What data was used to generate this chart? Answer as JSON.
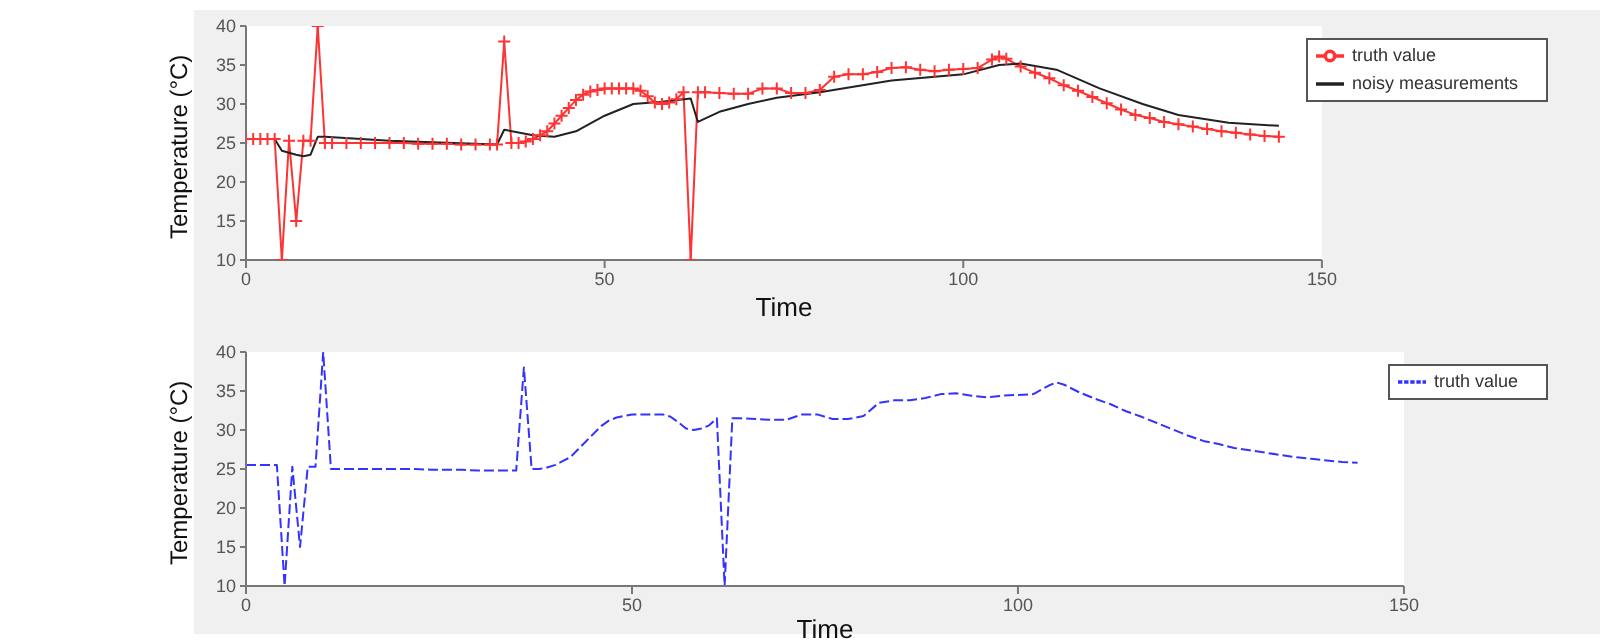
{
  "chart_data": [
    {
      "type": "line",
      "xlabel": "Time",
      "ylabel": "Temperature (°C)",
      "xlim": [
        0,
        150
      ],
      "xticks": [
        0,
        50,
        100,
        150
      ],
      "ylim": [
        10,
        40
      ],
      "yticks": [
        10,
        15,
        20,
        25,
        30,
        35,
        40
      ],
      "legend": "top right",
      "x": [
        0,
        1,
        2,
        3,
        4,
        5,
        6,
        7,
        8,
        9,
        10,
        11,
        12,
        14,
        16,
        18,
        20,
        22,
        24,
        26,
        28,
        30,
        32,
        34,
        35,
        36,
        37,
        38,
        39,
        40,
        41,
        42,
        43,
        44,
        45,
        46,
        47,
        48,
        49,
        50,
        51,
        52,
        53,
        54,
        55,
        56,
        57,
        58,
        59,
        60,
        61,
        62,
        63,
        64,
        66,
        68,
        70,
        72,
        74,
        76,
        78,
        80,
        82,
        84,
        86,
        88,
        90,
        92,
        94,
        96,
        98,
        100,
        102,
        104,
        105,
        106,
        108,
        110,
        112,
        114,
        116,
        118,
        120,
        122,
        124,
        126,
        128,
        130,
        132,
        134,
        136,
        138,
        140,
        142,
        144
      ],
      "series": [
        {
          "name": "truth value",
          "color": "#ff3333",
          "marker": "cross",
          "values": [
            25.5,
            25.5,
            25.5,
            25.5,
            25.5,
            10,
            25.3,
            15,
            25.3,
            25.3,
            40,
            25,
            25,
            25,
            25,
            25,
            25,
            25,
            24.9,
            24.9,
            24.9,
            24.8,
            24.8,
            24.8,
            24.8,
            38,
            25,
            25,
            25.2,
            25.5,
            26,
            26.5,
            27.5,
            28.5,
            29.5,
            30.5,
            31.2,
            31.6,
            31.8,
            32,
            32,
            32,
            32,
            32,
            31.7,
            31,
            30.2,
            30,
            30.2,
            30.6,
            31.5,
            10,
            31.5,
            31.5,
            31.4,
            31.3,
            31.3,
            32,
            32,
            31.4,
            31.4,
            31.8,
            33.5,
            33.8,
            33.8,
            34.1,
            34.6,
            34.7,
            34.4,
            34.2,
            34.4,
            34.5,
            34.6,
            35.7,
            36.1,
            35.8,
            34.8,
            34,
            33.3,
            32.4,
            31.7,
            30.9,
            30.1,
            29.3,
            28.6,
            28.2,
            27.7,
            27.4,
            27.1,
            26.8,
            26.5,
            26.3,
            26.1,
            25.9,
            25.8
          ]
        },
        {
          "name": "noisy measurements",
          "color": "#222222",
          "x": [
            0,
            4,
            5,
            7,
            8,
            9,
            10,
            11,
            20,
            35,
            36,
            40,
            43,
            46,
            50,
            54,
            58,
            62,
            63,
            66,
            70,
            74,
            80,
            90,
            100,
            105,
            108,
            113,
            119,
            125,
            130,
            137,
            144
          ],
          "values": [
            25.5,
            25.5,
            24,
            23.5,
            23.3,
            23.5,
            25.8,
            25.8,
            25.3,
            24.8,
            26.7,
            26,
            25.8,
            26.5,
            28.5,
            30,
            30.3,
            30.7,
            27.7,
            29,
            30,
            30.8,
            31.5,
            33,
            33.8,
            35,
            35.2,
            34.4,
            32,
            30,
            28.6,
            27.6,
            27.2
          ]
        }
      ]
    },
    {
      "type": "line",
      "xlabel": "Time",
      "ylabel": "Temperature (°C)",
      "xlim": [
        0,
        150
      ],
      "xticks": [
        0,
        50,
        100,
        150
      ],
      "ylim": [
        10,
        40
      ],
      "yticks": [
        10,
        15,
        20,
        25,
        30,
        35,
        40
      ],
      "legend": "top right",
      "line_style": "dashed",
      "x": [
        0,
        1,
        2,
        3,
        4,
        5,
        6,
        7,
        8,
        9,
        10,
        11,
        12,
        14,
        16,
        18,
        20,
        22,
        24,
        26,
        28,
        30,
        32,
        34,
        35,
        36,
        37,
        38,
        39,
        40,
        41,
        42,
        43,
        44,
        45,
        46,
        47,
        48,
        49,
        50,
        51,
        52,
        53,
        54,
        55,
        56,
        57,
        58,
        59,
        60,
        61,
        62,
        63,
        64,
        66,
        68,
        70,
        72,
        74,
        76,
        78,
        80,
        82,
        84,
        86,
        88,
        90,
        92,
        94,
        96,
        98,
        100,
        102,
        104,
        105,
        106,
        108,
        110,
        112,
        114,
        116,
        118,
        120,
        122,
        124,
        126,
        128,
        130,
        132,
        134,
        136,
        138,
        140,
        142,
        144
      ],
      "series": [
        {
          "name": "truth value",
          "color": "#3333ff",
          "values": [
            25.5,
            25.5,
            25.5,
            25.5,
            25.5,
            10,
            25.3,
            15,
            25.3,
            25.3,
            40,
            25,
            25,
            25,
            25,
            25,
            25,
            25,
            24.9,
            24.9,
            24.9,
            24.8,
            24.8,
            24.8,
            24.8,
            38,
            25,
            25,
            25.2,
            25.5,
            26,
            26.5,
            27.5,
            28.5,
            29.5,
            30.5,
            31.2,
            31.6,
            31.8,
            32,
            32,
            32,
            32,
            32,
            31.7,
            31,
            30.2,
            30,
            30.2,
            30.6,
            31.5,
            10,
            31.5,
            31.5,
            31.4,
            31.3,
            31.3,
            32,
            32,
            31.4,
            31.4,
            31.8,
            33.5,
            33.8,
            33.8,
            34.1,
            34.6,
            34.7,
            34.4,
            34.2,
            34.4,
            34.5,
            34.6,
            35.7,
            36.1,
            35.8,
            34.8,
            34,
            33.3,
            32.4,
            31.7,
            30.9,
            30.1,
            29.3,
            28.6,
            28.2,
            27.7,
            27.4,
            27.1,
            26.8,
            26.5,
            26.3,
            26.1,
            25.9,
            25.8
          ]
        }
      ]
    }
  ]
}
